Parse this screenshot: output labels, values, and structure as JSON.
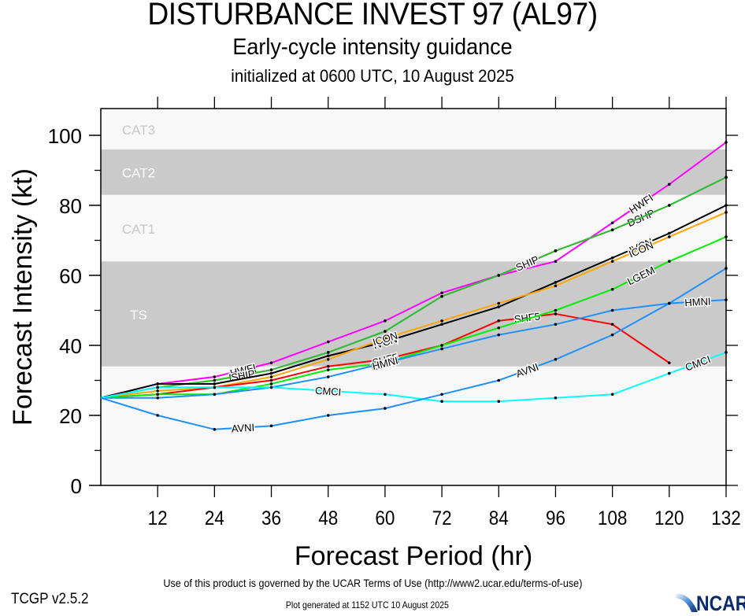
{
  "header": {
    "title": "DISTURBANCE INVEST 97 (AL97)",
    "subtitle": "Early-cycle intensity guidance",
    "init": "initialized at 0600 UTC, 10 August 2025"
  },
  "footer": {
    "terms": "Use of this product is governed by the UCAR Terms of Use (http://www2.ucar.edu/terms-of-use)",
    "generated": "Plot generated at 1152 UTC   10 August 2025",
    "version": "TCGP v2.5.2",
    "logo": "NCAR"
  },
  "chart_data": {
    "type": "line",
    "title": "DISTURBANCE INVEST 97 (AL97)",
    "xlabel": "Forecast Period (hr)",
    "ylabel": "Forecast Intensity (kt)",
    "xlim": [
      0,
      132
    ],
    "ylim": [
      0,
      100
    ],
    "xticks": [
      12,
      24,
      36,
      48,
      60,
      72,
      84,
      96,
      108,
      120,
      132
    ],
    "yticks": [
      0,
      20,
      40,
      60,
      80,
      100
    ],
    "bands": [
      {
        "label": "TS",
        "from": 34,
        "to": 64,
        "shade": "dark"
      },
      {
        "label": "CAT1",
        "from": 64,
        "to": 83,
        "shade": "light"
      },
      {
        "label": "CAT2",
        "from": 83,
        "to": 96,
        "shade": "dark"
      },
      {
        "label": "CAT3",
        "from": 96,
        "to": 110,
        "shade": "light"
      }
    ],
    "x": [
      0,
      12,
      24,
      36,
      48,
      60,
      72,
      84,
      96,
      108,
      120,
      132
    ],
    "series": [
      {
        "name": "HWFI",
        "color": "#ff00ff",
        "values": [
          25,
          29,
          31,
          35,
          41,
          47,
          55,
          60,
          64,
          75,
          86,
          98
        ]
      },
      {
        "name": "DSHP",
        "color": "#33bb33",
        "values": [
          25,
          28,
          30,
          33,
          38,
          44,
          54,
          60,
          67,
          73,
          80,
          88
        ]
      },
      {
        "name": "SHIP",
        "color": "#33bb33",
        "values": [
          25,
          28,
          30,
          33,
          38,
          44,
          54,
          60,
          67,
          73,
          80,
          88
        ]
      },
      {
        "name": "IVCN",
        "color": "#000000",
        "values": [
          25,
          29,
          29,
          32,
          37,
          41,
          46,
          51,
          58,
          65,
          72,
          80
        ]
      },
      {
        "name": "ICON",
        "color": "#ffa500",
        "values": [
          25,
          27,
          28,
          31,
          36,
          42,
          47,
          52,
          57,
          64,
          71,
          78
        ]
      },
      {
        "name": "SHF5",
        "color": "#ff0000",
        "values": [
          25,
          26,
          28,
          30,
          34,
          36,
          40,
          47,
          49,
          46,
          35,
          null
        ]
      },
      {
        "name": "LGEM",
        "color": "#00ee00",
        "values": [
          25,
          26,
          26,
          29,
          33,
          35,
          40,
          45,
          50,
          56,
          64,
          71
        ]
      },
      {
        "name": "HMNI",
        "color": "#1e90ff",
        "values": [
          25,
          25,
          26,
          28,
          31,
          35,
          39,
          43,
          46,
          50,
          52,
          53
        ]
      },
      {
        "name": "CMCI",
        "color": "#00ffff",
        "values": [
          25,
          28,
          28,
          28,
          27,
          26,
          24,
          24,
          25,
          26,
          32,
          38
        ]
      },
      {
        "name": "AVNI",
        "color": "#1e90ff",
        "values": [
          25,
          20,
          16,
          17,
          20,
          22,
          26,
          30,
          36,
          43,
          52,
          62
        ]
      }
    ],
    "grid": false,
    "legend": "inline labels on lines"
  }
}
